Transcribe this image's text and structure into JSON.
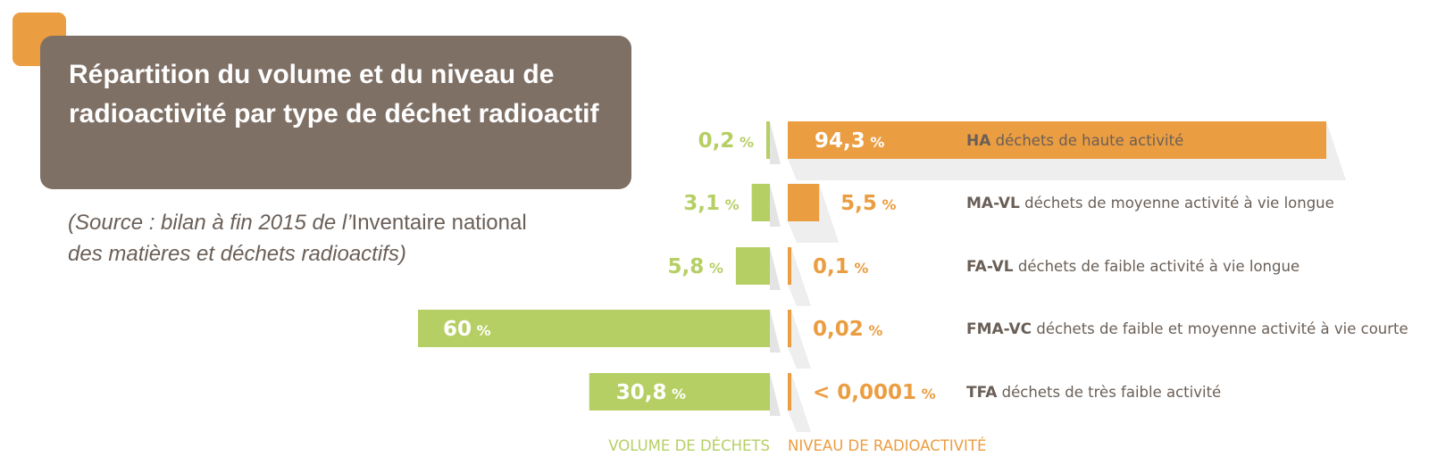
{
  "title": "Répartition du volume et du niveau de radioactivité par type de déchet radioactif",
  "source": {
    "part1": "(Source : bilan à fin 2015 de l’",
    "part2": "Inventaire national",
    "part3": "des matières et déchets radioactifs)"
  },
  "colors": {
    "volume": "#b6cf64",
    "radioactivity": "#eb9d41",
    "title_box": "#7f7066",
    "corner": "#eb9d41",
    "text": "#6a5f57"
  },
  "chart_data": {
    "type": "bar",
    "orientation": "horizontal-diverging",
    "categories": [
      "HA",
      "MA-VL",
      "FA-VL",
      "FMA-VC",
      "TFA"
    ],
    "category_descriptions": [
      "déchets de haute activité",
      "déchets de moyenne activité à vie longue",
      "déchets de faible activité à vie longue",
      "déchets de faible et moyenne activité à vie courte",
      "déchets de très faible activité"
    ],
    "series": [
      {
        "name": "VOLUME DE DÉCHETS",
        "values": [
          0.2,
          3.1,
          5.8,
          60,
          30.8
        ],
        "labels": [
          "0,2",
          "3,1",
          "5,8",
          "60",
          "30,8"
        ]
      },
      {
        "name": "NIVEAU DE RADIOACTIVITÉ",
        "values": [
          94.3,
          5.5,
          0.1,
          0.02,
          0.0001
        ],
        "labels": [
          "94,3",
          "5,5",
          "0,1",
          "0,02",
          "< 0,0001"
        ]
      }
    ],
    "unit": "%",
    "axis_labels": {
      "volume": "VOLUME DE DÉCHETS",
      "radioactivity": "NIVEAU DE RADIOACTIVITÉ"
    },
    "legend": "bottom-center"
  }
}
